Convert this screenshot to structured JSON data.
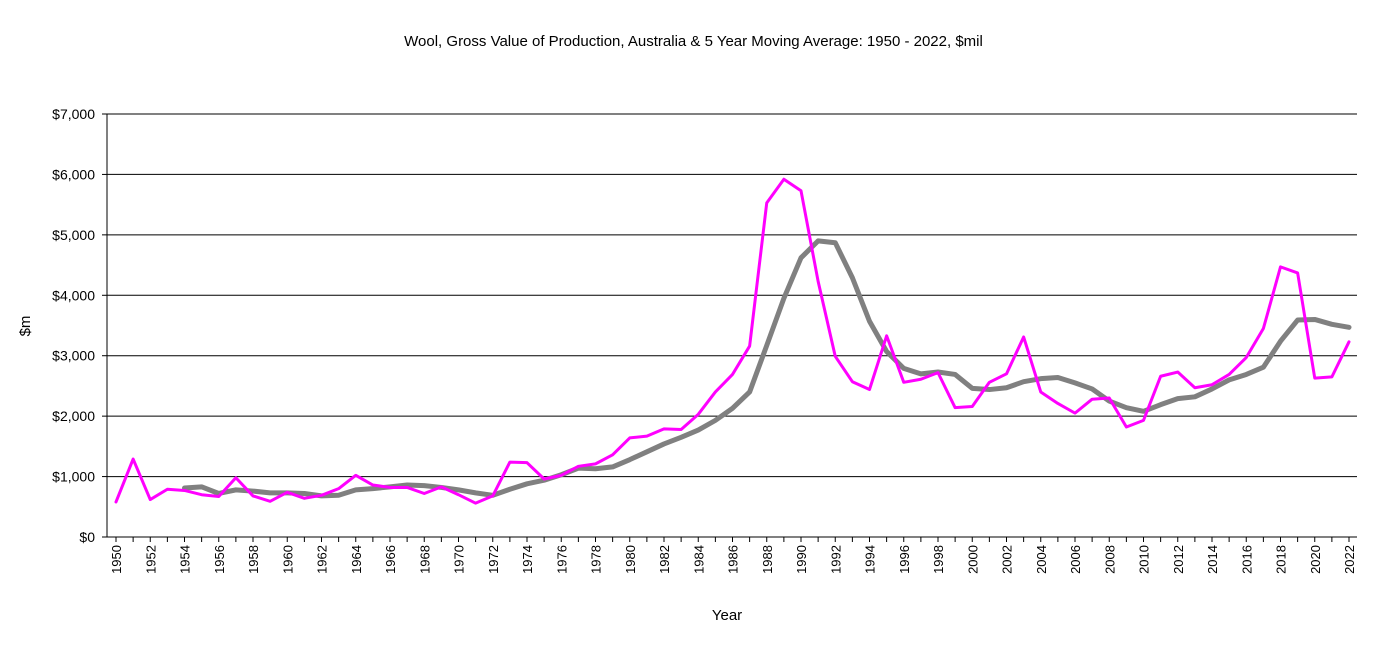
{
  "chart_data": {
    "type": "line",
    "title": "Wool,  Gross Value of Production,  Australia & 5 Year Moving Average: 1950 - 2022, $mil",
    "xlabel": "Year",
    "ylabel": "$m",
    "ylim": [
      0,
      7000
    ],
    "yticks": [
      "$0",
      "$1,000",
      "$2,000",
      "$3,000",
      "$4,000",
      "$5,000",
      "$6,000",
      "$7,000"
    ],
    "xticks": [
      "1950",
      "1952",
      "1954",
      "1956",
      "1958",
      "1960",
      "1962",
      "1964",
      "1966",
      "1968",
      "1970",
      "1972",
      "1974",
      "1976",
      "1978",
      "1980",
      "1982",
      "1984",
      "1986",
      "1988",
      "1990",
      "1992",
      "1994",
      "1996",
      "1998",
      "2000",
      "2002",
      "2004",
      "2006",
      "2008",
      "2010",
      "2012",
      "2014",
      "2016",
      "2018",
      "2020",
      "2022"
    ],
    "grid": "horizontal",
    "legend": "none",
    "x": [
      1950,
      1951,
      1952,
      1953,
      1954,
      1955,
      1956,
      1957,
      1958,
      1959,
      1960,
      1961,
      1962,
      1963,
      1964,
      1965,
      1966,
      1967,
      1968,
      1969,
      1970,
      1971,
      1972,
      1973,
      1974,
      1975,
      1976,
      1977,
      1978,
      1979,
      1980,
      1981,
      1982,
      1983,
      1984,
      1985,
      1986,
      1987,
      1988,
      1989,
      1990,
      1991,
      1992,
      1993,
      1994,
      1995,
      1996,
      1997,
      1998,
      1999,
      2000,
      2001,
      2002,
      2003,
      2004,
      2005,
      2006,
      2007,
      2008,
      2009,
      2010,
      2011,
      2012,
      2013,
      2014,
      2015,
      2016,
      2017,
      2018,
      2019,
      2020,
      2021,
      2022
    ],
    "series": [
      {
        "color": "#ff00ff",
        "values": [
          580,
          1290,
          620,
          790,
          770,
          700,
          670,
          980,
          680,
          590,
          740,
          640,
          690,
          800,
          1020,
          860,
          820,
          820,
          720,
          830,
          700,
          560,
          680,
          1240,
          1230,
          960,
          1020,
          1170,
          1210,
          1360,
          1640,
          1670,
          1790,
          1780,
          2030,
          2400,
          2690,
          3160,
          5530,
          5920,
          5730,
          4230,
          2990,
          2570,
          2440,
          3330,
          2560,
          2610,
          2720,
          2140,
          2160,
          2560,
          2700,
          3310,
          2400,
          2210,
          2050,
          2280,
          2300,
          1820,
          1930,
          2660,
          2730,
          2470,
          2520,
          2690,
          2970,
          3450,
          4470,
          4370,
          2630,
          2650,
          3230
        ]
      },
      {
        "color": "#808080",
        "values": [
          null,
          null,
          null,
          null,
          810,
          830,
          720,
          780,
          760,
          730,
          730,
          720,
          680,
          690,
          780,
          800,
          830,
          860,
          850,
          820,
          780,
          730,
          690,
          790,
          880,
          940,
          1030,
          1140,
          1130,
          1160,
          1280,
          1410,
          1540,
          1650,
          1770,
          1930,
          2130,
          2400,
          3170,
          3950,
          4620,
          4900,
          4870,
          4290,
          3570,
          3070,
          2790,
          2700,
          2730,
          2690,
          2460,
          2440,
          2470,
          2570,
          2620,
          2640,
          2550,
          2450,
          2250,
          2140,
          2080,
          2190,
          2290,
          2320,
          2450,
          2600,
          2690,
          2810,
          3240,
          3590,
          3600,
          3520,
          3470
        ]
      }
    ]
  }
}
